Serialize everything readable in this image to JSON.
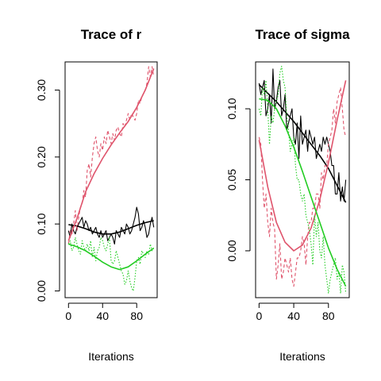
{
  "chart_data": [
    {
      "type": "line",
      "title": "Trace of r",
      "xlabel": "Iterations",
      "ylabel": "",
      "xlim": [
        -4,
        104
      ],
      "ylim": [
        -0.01,
        0.342
      ],
      "x_ticks": [
        "0",
        "40",
        "80"
      ],
      "x_tick_values": [
        0,
        40,
        80
      ],
      "y_ticks": [
        "0.00",
        "0.10",
        "0.20",
        "0.30"
      ],
      "y_tick_values": [
        0,
        0.1,
        0.2,
        0.3
      ],
      "grid": false,
      "series": [
        {
          "color": "#000000",
          "style": "solid",
          "kind": "trace",
          "x": [
            0,
            2,
            4,
            6,
            8,
            10,
            12,
            14,
            16,
            18,
            20,
            22,
            24,
            26,
            28,
            30,
            32,
            34,
            36,
            38,
            40,
            42,
            44,
            46,
            48,
            50,
            52,
            54,
            56,
            58,
            60,
            62,
            64,
            66,
            68,
            70,
            72,
            74,
            76,
            78,
            80,
            82,
            84,
            86,
            88,
            90,
            92,
            94,
            96,
            98,
            100
          ],
          "y": [
            0.09,
            0.08,
            0.1,
            0.09,
            0.085,
            0.095,
            0.1,
            0.105,
            0.11,
            0.095,
            0.105,
            0.1,
            0.09,
            0.095,
            0.085,
            0.09,
            0.095,
            0.085,
            0.08,
            0.09,
            0.08,
            0.085,
            0.09,
            0.075,
            0.08,
            0.085,
            0.08,
            0.07,
            0.09,
            0.085,
            0.08,
            0.095,
            0.09,
            0.085,
            0.1,
            0.095,
            0.085,
            0.09,
            0.1,
            0.11,
            0.125,
            0.115,
            0.09,
            0.095,
            0.105,
            0.095,
            0.08,
            0.085,
            0.1,
            0.11,
            0.095
          ]
        },
        {
          "color": "#000000",
          "style": "solid",
          "kind": "smooth",
          "x": [
            0,
            10,
            20,
            30,
            40,
            50,
            60,
            70,
            80,
            90,
            100
          ],
          "y": [
            0.099,
            0.097,
            0.093,
            0.088,
            0.085,
            0.085,
            0.088,
            0.093,
            0.098,
            0.102,
            0.105
          ]
        },
        {
          "color": "#DF536B",
          "style": "dashed",
          "kind": "trace",
          "x": [
            0,
            2,
            4,
            6,
            8,
            10,
            12,
            14,
            16,
            18,
            20,
            22,
            24,
            26,
            28,
            30,
            32,
            34,
            36,
            38,
            40,
            42,
            44,
            46,
            48,
            50,
            52,
            54,
            56,
            58,
            60,
            62,
            64,
            66,
            68,
            70,
            72,
            74,
            76,
            78,
            80,
            82,
            84,
            86,
            88,
            90,
            92,
            94,
            96,
            98,
            100
          ],
          "y": [
            0.07,
            0.09,
            0.085,
            0.1,
            0.12,
            0.09,
            0.11,
            0.125,
            0.13,
            0.15,
            0.14,
            0.18,
            0.19,
            0.17,
            0.2,
            0.22,
            0.23,
            0.21,
            0.2,
            0.22,
            0.21,
            0.23,
            0.22,
            0.24,
            0.23,
            0.22,
            0.235,
            0.225,
            0.24,
            0.245,
            0.235,
            0.23,
            0.25,
            0.245,
            0.255,
            0.265,
            0.255,
            0.265,
            0.26,
            0.255,
            0.265,
            0.285,
            0.28,
            0.29,
            0.295,
            0.3,
            0.31,
            0.335,
            0.32,
            0.335,
            0.32
          ]
        },
        {
          "color": "#DF536B",
          "style": "solid",
          "kind": "smooth",
          "x": [
            0,
            10,
            20,
            30,
            40,
            50,
            60,
            70,
            80,
            90,
            100
          ],
          "y": [
            0.075,
            0.108,
            0.148,
            0.175,
            0.198,
            0.218,
            0.236,
            0.253,
            0.274,
            0.3,
            0.332
          ]
        },
        {
          "color": "#22CC22",
          "style": "dotted",
          "kind": "trace",
          "x": [
            0,
            2,
            4,
            6,
            8,
            10,
            12,
            14,
            16,
            18,
            20,
            22,
            24,
            26,
            28,
            30,
            32,
            34,
            36,
            38,
            40,
            42,
            44,
            46,
            48,
            50,
            52,
            54,
            56,
            58,
            60,
            62,
            64,
            66,
            68,
            70,
            72,
            74,
            76,
            78,
            80,
            82,
            84,
            86,
            88,
            90,
            92,
            94,
            96,
            98,
            100
          ],
          "y": [
            0.07,
            0.075,
            0.06,
            0.065,
            0.08,
            0.07,
            0.06,
            0.055,
            0.075,
            0.065,
            0.06,
            0.07,
            0.06,
            0.075,
            0.05,
            0.065,
            0.045,
            0.06,
            0.065,
            0.08,
            0.075,
            0.065,
            0.06,
            0.07,
            0.08,
            0.045,
            0.04,
            0.045,
            0.06,
            0.05,
            0.04,
            0.03,
            0.025,
            0.01,
            0.015,
            0.03,
            0.015,
            0.005,
            0.0,
            0.02,
            0.045,
            0.05,
            0.04,
            0.06,
            0.055,
            0.05,
            0.06,
            0.055,
            0.07,
            0.06,
            0.065
          ]
        },
        {
          "color": "#22CC22",
          "style": "solid",
          "kind": "smooth",
          "x": [
            0,
            10,
            20,
            30,
            40,
            50,
            60,
            70,
            80,
            90,
            100
          ],
          "y": [
            0.07,
            0.066,
            0.06,
            0.052,
            0.043,
            0.036,
            0.032,
            0.036,
            0.045,
            0.055,
            0.064
          ]
        }
      ]
    },
    {
      "type": "line",
      "title": "Trace of sigma",
      "xlabel": "Iterations",
      "ylabel": "",
      "xlim": [
        -4,
        104
      ],
      "ylim": [
        -0.033,
        0.133
      ],
      "x_ticks": [
        "0",
        "40",
        "80"
      ],
      "x_tick_values": [
        0,
        40,
        80
      ],
      "y_ticks": [
        "0.00",
        "0.05",
        "0.10"
      ],
      "y_tick_values": [
        0,
        0.05,
        0.1
      ],
      "grid": false,
      "series": [
        {
          "color": "#000000",
          "style": "solid",
          "kind": "trace",
          "x": [
            0,
            2,
            4,
            6,
            8,
            10,
            12,
            14,
            16,
            18,
            20,
            22,
            24,
            26,
            28,
            30,
            32,
            34,
            36,
            38,
            40,
            42,
            44,
            46,
            48,
            50,
            52,
            54,
            56,
            58,
            60,
            62,
            64,
            66,
            68,
            70,
            72,
            74,
            76,
            78,
            80,
            82,
            84,
            86,
            88,
            90,
            92,
            94,
            96,
            98,
            100
          ],
          "y": [
            0.118,
            0.11,
            0.115,
            0.12,
            0.095,
            0.1,
            0.11,
            0.09,
            0.128,
            0.1,
            0.105,
            0.115,
            0.12,
            0.095,
            0.1,
            0.11,
            0.085,
            0.09,
            0.095,
            0.1,
            0.08,
            0.075,
            0.09,
            0.065,
            0.095,
            0.075,
            0.08,
            0.085,
            0.07,
            0.085,
            0.08,
            0.075,
            0.08,
            0.065,
            0.07,
            0.075,
            0.07,
            0.08,
            0.075,
            0.08,
            0.075,
            0.07,
            0.06,
            0.06,
            0.04,
            0.04,
            0.055,
            0.035,
            0.045,
            0.035,
            0.05
          ]
        },
        {
          "color": "#000000",
          "style": "solid",
          "kind": "smooth",
          "x": [
            0,
            10,
            20,
            30,
            40,
            50,
            60,
            70,
            80,
            90,
            100
          ],
          "y": [
            0.117,
            0.111,
            0.105,
            0.098,
            0.091,
            0.083,
            0.075,
            0.067,
            0.058,
            0.046,
            0.034
          ]
        },
        {
          "color": "#DF536B",
          "style": "dashed",
          "kind": "trace",
          "x": [
            0,
            2,
            4,
            6,
            8,
            10,
            12,
            14,
            16,
            18,
            20,
            22,
            24,
            26,
            28,
            30,
            32,
            34,
            36,
            38,
            40,
            42,
            44,
            46,
            48,
            50,
            52,
            54,
            56,
            58,
            60,
            62,
            64,
            66,
            68,
            70,
            72,
            74,
            76,
            78,
            80,
            82,
            84,
            86,
            88,
            90,
            92,
            94,
            96,
            98,
            100
          ],
          "y": [
            0.08,
            0.075,
            0.05,
            0.03,
            0.04,
            0.02,
            0.01,
            0.03,
            0.02,
            0.015,
            -0.02,
            -0.01,
            0.005,
            -0.02,
            -0.015,
            -0.005,
            -0.01,
            -0.015,
            -0.005,
            -0.02,
            -0.025,
            -0.015,
            -0.005,
            -0.005,
            0.0,
            0.01,
            0.005,
            -0.01,
            0.01,
            0.02,
            0.02,
            0.03,
            0.03,
            0.04,
            0.04,
            0.03,
            0.055,
            0.05,
            0.06,
            0.06,
            0.075,
            0.08,
            0.085,
            0.1,
            0.09,
            0.105,
            0.11,
            0.115,
            0.1,
            0.085,
            0.08
          ]
        },
        {
          "color": "#DF536B",
          "style": "solid",
          "kind": "smooth",
          "x": [
            0,
            10,
            20,
            30,
            40,
            50,
            60,
            70,
            80,
            90,
            100
          ],
          "y": [
            0.078,
            0.045,
            0.02,
            0.006,
            0.0,
            0.004,
            0.016,
            0.036,
            0.062,
            0.092,
            0.12
          ]
        },
        {
          "color": "#22CC22",
          "style": "dotted",
          "kind": "trace",
          "x": [
            0,
            2,
            4,
            6,
            8,
            10,
            12,
            14,
            16,
            18,
            20,
            22,
            24,
            26,
            28,
            30,
            32,
            34,
            36,
            38,
            40,
            42,
            44,
            46,
            48,
            50,
            52,
            54,
            56,
            58,
            60,
            62,
            64,
            66,
            68,
            70,
            72,
            74,
            76,
            78,
            80,
            82,
            84,
            86,
            88,
            90,
            92,
            94,
            96,
            98,
            100
          ],
          "y": [
            0.1,
            0.095,
            0.115,
            0.11,
            0.12,
            0.1,
            0.075,
            0.095,
            0.09,
            0.1,
            0.105,
            0.11,
            0.125,
            0.13,
            0.12,
            0.115,
            0.095,
            0.085,
            0.07,
            0.075,
            0.08,
            0.06,
            0.05,
            0.05,
            0.04,
            0.035,
            0.04,
            0.025,
            0.02,
            0.015,
            0.005,
            -0.01,
            0.025,
            0.01,
            0.02,
            0.0,
            -0.005,
            0.01,
            -0.01,
            -0.02,
            -0.03,
            -0.02,
            -0.015,
            -0.01,
            -0.005,
            -0.02,
            -0.015,
            -0.03,
            -0.01,
            -0.015,
            -0.03
          ]
        },
        {
          "color": "#22CC22",
          "style": "solid",
          "kind": "smooth",
          "x": [
            0,
            10,
            20,
            30,
            40,
            50,
            60,
            70,
            80,
            90,
            100
          ],
          "y": [
            0.107,
            0.106,
            0.1,
            0.088,
            0.073,
            0.056,
            0.038,
            0.02,
            0.002,
            -0.013,
            -0.025
          ]
        }
      ]
    }
  ]
}
